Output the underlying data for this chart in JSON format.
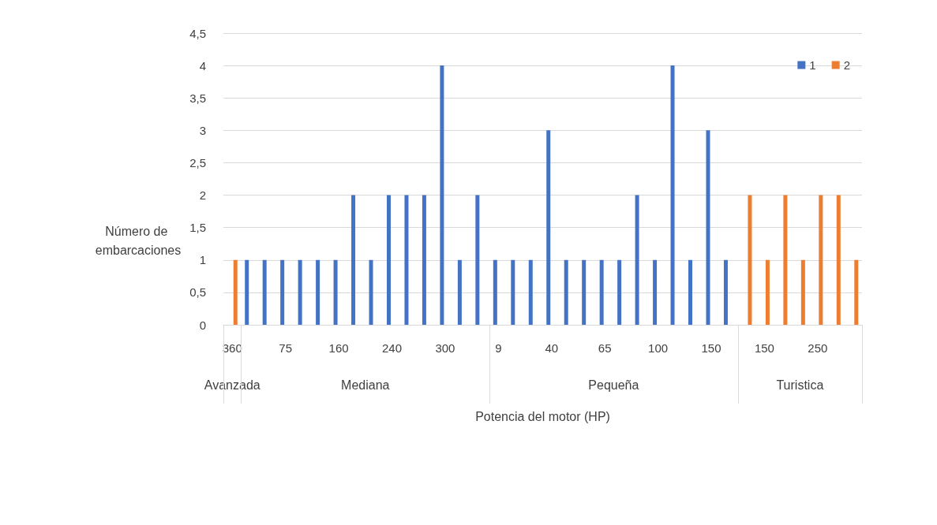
{
  "chart_data": {
    "type": "bar",
    "xlabel": "Potencia del motor (HP)",
    "ylabel": "Número de embarcaciones",
    "categories": [
      "360",
      null,
      null,
      "75",
      null,
      null,
      "160",
      null,
      null,
      "240",
      null,
      null,
      "300",
      null,
      null,
      "9",
      null,
      null,
      "40",
      null,
      null,
      "65",
      null,
      null,
      "100",
      null,
      null,
      "150",
      null,
      null,
      "150",
      null,
      null,
      "250",
      null,
      null
    ],
    "series": [
      {
        "name": "1",
        "color": "#4472c4",
        "values": [
          null,
          1,
          1,
          1,
          1,
          1,
          1,
          2,
          1,
          2,
          2,
          2,
          4,
          1,
          2,
          1,
          1,
          1,
          3,
          1,
          1,
          1,
          1,
          2,
          1,
          4,
          1,
          3,
          1,
          null,
          null,
          null,
          null,
          null,
          null,
          null
        ]
      },
      {
        "name": "2",
        "color": "#ed7d31",
        "values": [
          1,
          null,
          null,
          null,
          null,
          null,
          null,
          null,
          null,
          null,
          null,
          null,
          null,
          null,
          null,
          null,
          null,
          null,
          null,
          null,
          null,
          null,
          null,
          null,
          null,
          null,
          null,
          null,
          null,
          2,
          1,
          2,
          1,
          2,
          2,
          1
        ]
      }
    ],
    "ylim": [
      0,
      4.5
    ],
    "yticks": [
      0,
      {
        "value": 0.5,
        "label": "0,5"
      },
      1,
      {
        "value": 1.5,
        "label": "1,5"
      },
      2,
      {
        "value": 2.5,
        "label": "2,5"
      },
      3,
      {
        "value": 3.5,
        "label": "3,5"
      },
      4,
      {
        "value": 4.5,
        "label": "4,5"
      }
    ],
    "grid": "y",
    "legend": "top right",
    "annotations": [
      "Avanzada",
      "Mediana",
      "Pequeña",
      "Turistica"
    ]
  }
}
